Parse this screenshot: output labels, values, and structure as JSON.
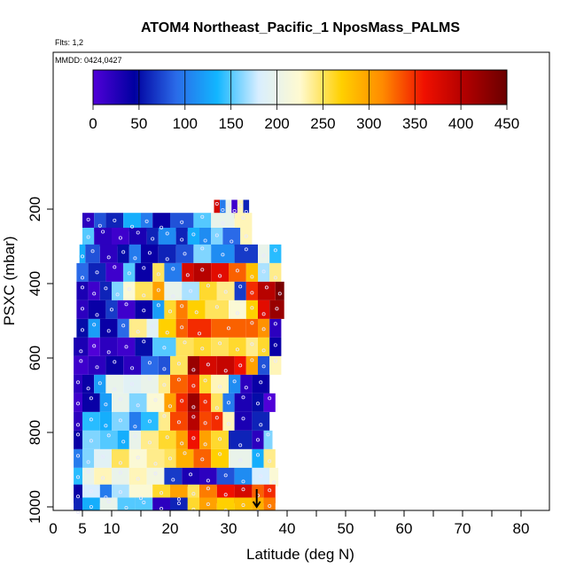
{
  "chart_data": {
    "type": "heatmap",
    "title": "ATOM4 Northeast_Pacific_1 NposMass_PALMS",
    "notes": [
      "Flts: 1,2",
      "MMDD: 0424,0427"
    ],
    "xlabel": "Latitude (deg N)",
    "ylabel": "PSXC (mbar)",
    "xlim": [
      0,
      85
    ],
    "ylim": [
      1000,
      100
    ],
    "x_ticks": [
      0,
      5,
      10,
      20,
      30,
      40,
      50,
      60,
      70,
      80
    ],
    "y_ticks": [
      200,
      400,
      600,
      800,
      1000
    ],
    "colorbar": {
      "range": [
        0,
        450
      ],
      "ticks": [
        0,
        50,
        100,
        150,
        200,
        250,
        300,
        350,
        400,
        450
      ],
      "colors": [
        "#5000d8",
        "#0000a0",
        "#2a6ae8",
        "#12b6ff",
        "#d8eeff",
        "#fffad0",
        "#ffd000",
        "#ff8a00",
        "#f01000",
        "#b00000",
        "#6a0000"
      ]
    },
    "x_grid": [
      5,
      10,
      15,
      20,
      25,
      30,
      35,
      40,
      45,
      50,
      55,
      60,
      65,
      70,
      75,
      80
    ],
    "bands": [
      {
        "p": 200,
        "segments": [
          [
            27.5,
            28.5,
            380
          ],
          [
            28.5,
            29.5,
            100
          ],
          [
            29.5,
            30.5,
            200
          ],
          [
            30.5,
            31.5,
            10
          ],
          [
            31.5,
            32.5,
            230
          ],
          [
            32.5,
            33.5,
            60
          ]
        ]
      },
      {
        "p": 235,
        "segments": [
          [
            5,
            7,
            20
          ],
          [
            7,
            9,
            80
          ],
          [
            9,
            12,
            60
          ],
          [
            12,
            15,
            130
          ],
          [
            15,
            17,
            100
          ],
          [
            17,
            20,
            40
          ],
          [
            20,
            24,
            80
          ],
          [
            24,
            27,
            150
          ],
          [
            27,
            31,
            200
          ],
          [
            31,
            34,
            230
          ]
        ]
      },
      {
        "p": 275,
        "segments": [
          [
            5,
            7,
            150
          ],
          [
            7,
            10,
            20
          ],
          [
            10,
            13,
            10
          ],
          [
            13,
            16,
            30
          ],
          [
            16,
            18,
            60
          ],
          [
            18,
            21,
            110
          ],
          [
            21,
            23,
            60
          ],
          [
            23,
            25,
            130
          ],
          [
            25,
            27,
            110
          ],
          [
            27,
            29,
            160
          ],
          [
            29,
            32,
            90
          ],
          [
            32,
            34,
            230
          ]
        ]
      },
      {
        "p": 320,
        "segments": [
          [
            4.5,
            5.5,
            130
          ],
          [
            5.5,
            8,
            80
          ],
          [
            8,
            11,
            20
          ],
          [
            11,
            13,
            50
          ],
          [
            13,
            15,
            100
          ],
          [
            15,
            18,
            40
          ],
          [
            18,
            21,
            60
          ],
          [
            21,
            24,
            80
          ],
          [
            24,
            27,
            160
          ],
          [
            27,
            31,
            110
          ],
          [
            31,
            35,
            70
          ],
          [
            35,
            37,
            200
          ],
          [
            37,
            39,
            140
          ]
        ]
      },
      {
        "p": 370,
        "segments": [
          [
            4,
            6,
            90
          ],
          [
            6,
            9,
            60
          ],
          [
            9,
            12,
            10
          ],
          [
            12,
            14,
            150
          ],
          [
            14,
            17,
            40
          ],
          [
            17,
            19,
            250
          ],
          [
            19,
            22,
            100
          ],
          [
            22,
            24,
            380
          ],
          [
            24,
            27,
            400
          ],
          [
            27,
            30,
            370
          ],
          [
            30,
            33,
            330
          ],
          [
            33,
            35,
            280
          ],
          [
            35,
            37,
            170
          ],
          [
            37,
            39,
            240
          ]
        ]
      },
      {
        "p": 420,
        "segments": [
          [
            4,
            6,
            30
          ],
          [
            6,
            8,
            10
          ],
          [
            8,
            10,
            60
          ],
          [
            10,
            12,
            160
          ],
          [
            12,
            14,
            220
          ],
          [
            14,
            17,
            250
          ],
          [
            17,
            19,
            300
          ],
          [
            19,
            22,
            200
          ],
          [
            22,
            25,
            170
          ],
          [
            25,
            28,
            260
          ],
          [
            28,
            31,
            240
          ],
          [
            31,
            33,
            70
          ],
          [
            33,
            35,
            350
          ],
          [
            35,
            38,
            400
          ],
          [
            38,
            39.5,
            440
          ]
        ]
      },
      {
        "p": 470,
        "segments": [
          [
            4,
            6,
            20
          ],
          [
            6,
            9,
            40
          ],
          [
            9,
            11,
            70
          ],
          [
            11,
            14,
            10
          ],
          [
            14,
            17,
            40
          ],
          [
            17,
            19,
            120
          ],
          [
            19,
            21,
            260
          ],
          [
            21,
            23,
            320
          ],
          [
            23,
            26,
            270
          ],
          [
            26,
            30,
            250
          ],
          [
            30,
            33,
            220
          ],
          [
            33,
            35,
            270
          ],
          [
            35,
            37,
            370
          ],
          [
            37,
            39.5,
            420
          ]
        ]
      },
      {
        "p": 520,
        "segments": [
          [
            4,
            6,
            50
          ],
          [
            6,
            8,
            120
          ],
          [
            8,
            11,
            40
          ],
          [
            11,
            13,
            90
          ],
          [
            13,
            16,
            240
          ],
          [
            16,
            18,
            190
          ],
          [
            18,
            21,
            270
          ],
          [
            21,
            23,
            330
          ],
          [
            23,
            27,
            350
          ],
          [
            27,
            33,
            330
          ],
          [
            33,
            35,
            330
          ],
          [
            35,
            37,
            310
          ],
          [
            37,
            39,
            20
          ]
        ]
      },
      {
        "p": 570,
        "segments": [
          [
            3.5,
            6,
            30
          ],
          [
            6,
            8,
            0
          ],
          [
            8,
            11,
            20
          ],
          [
            11,
            14,
            10
          ],
          [
            14,
            17,
            50
          ],
          [
            17,
            21,
            150
          ],
          [
            21,
            24,
            250
          ],
          [
            24,
            27,
            260
          ],
          [
            27,
            30,
            250
          ],
          [
            30,
            33,
            260
          ],
          [
            33,
            35,
            240
          ],
          [
            35,
            37,
            260
          ],
          [
            37,
            39,
            40
          ]
        ]
      },
      {
        "p": 620,
        "segments": [
          [
            3.5,
            6,
            10
          ],
          [
            6,
            9,
            20
          ],
          [
            9,
            12,
            40
          ],
          [
            12,
            15,
            20
          ],
          [
            15,
            18,
            90
          ],
          [
            18,
            20,
            80
          ],
          [
            20,
            23,
            250
          ],
          [
            23,
            25,
            420
          ],
          [
            25,
            28,
            380
          ],
          [
            28,
            31,
            390
          ],
          [
            31,
            33,
            360
          ],
          [
            33,
            35,
            300
          ],
          [
            35,
            37,
            80
          ],
          [
            37,
            39,
            230
          ]
        ]
      },
      {
        "p": 670,
        "segments": [
          [
            3.5,
            5,
            20
          ],
          [
            5,
            7,
            40
          ],
          [
            7,
            9,
            120
          ],
          [
            9,
            12,
            200
          ],
          [
            12,
            15,
            190
          ],
          [
            15,
            18,
            200
          ],
          [
            18,
            20,
            240
          ],
          [
            20,
            23,
            330
          ],
          [
            23,
            25,
            350
          ],
          [
            25,
            27,
            260
          ],
          [
            27,
            30,
            230
          ],
          [
            30,
            32,
            110
          ],
          [
            32,
            34,
            20
          ],
          [
            34,
            37,
            40
          ]
        ]
      },
      {
        "p": 720,
        "segments": [
          [
            3.5,
            5,
            10
          ],
          [
            5,
            8,
            40
          ],
          [
            8,
            10,
            120
          ],
          [
            10,
            13,
            200
          ],
          [
            13,
            16,
            160
          ],
          [
            16,
            19,
            220
          ],
          [
            19,
            21,
            300
          ],
          [
            21,
            23,
            350
          ],
          [
            23,
            25,
            420
          ],
          [
            25,
            27,
            350
          ],
          [
            27,
            29,
            250
          ],
          [
            29,
            31,
            100
          ],
          [
            31,
            34,
            30
          ],
          [
            34,
            36,
            50
          ],
          [
            36,
            38,
            0
          ]
        ]
      },
      {
        "p": 770,
        "segments": [
          [
            3.5,
            5,
            20
          ],
          [
            5,
            8,
            140
          ],
          [
            8,
            10,
            130
          ],
          [
            10,
            13,
            160
          ],
          [
            13,
            15,
            100
          ],
          [
            15,
            18,
            140
          ],
          [
            18,
            20,
            240
          ],
          [
            20,
            23,
            340
          ],
          [
            23,
            25,
            400
          ],
          [
            25,
            27,
            340
          ],
          [
            27,
            29,
            350
          ],
          [
            29,
            31,
            230
          ],
          [
            31,
            34,
            30
          ],
          [
            34,
            37,
            60
          ]
        ]
      },
      {
        "p": 820,
        "segments": [
          [
            3.5,
            5,
            40
          ],
          [
            5,
            8,
            160
          ],
          [
            8,
            11,
            150
          ],
          [
            11,
            13,
            130
          ],
          [
            13,
            15,
            200
          ],
          [
            15,
            18,
            240
          ],
          [
            18,
            21,
            260
          ],
          [
            21,
            23,
            300
          ],
          [
            23,
            25,
            360
          ],
          [
            25,
            27,
            300
          ],
          [
            27,
            30,
            260
          ],
          [
            30,
            34,
            60
          ],
          [
            34,
            36,
            20
          ],
          [
            36,
            37.5,
            160
          ]
        ]
      },
      {
        "p": 870,
        "segments": [
          [
            3.5,
            5,
            100
          ],
          [
            5,
            7,
            160
          ],
          [
            7,
            10,
            190
          ],
          [
            10,
            13,
            250
          ],
          [
            13,
            16,
            220
          ],
          [
            16,
            19,
            240
          ],
          [
            19,
            21,
            250
          ],
          [
            21,
            24,
            290
          ],
          [
            24,
            27,
            330
          ],
          [
            27,
            30,
            270
          ],
          [
            30,
            34,
            200
          ],
          [
            34,
            36,
            130
          ],
          [
            36,
            38,
            240
          ]
        ]
      },
      {
        "p": 920,
        "segments": [
          [
            3.5,
            5,
            140
          ],
          [
            5,
            7,
            200
          ],
          [
            7,
            10,
            230
          ],
          [
            10,
            13,
            200
          ],
          [
            13,
            16,
            230
          ],
          [
            16,
            19,
            210
          ],
          [
            19,
            22,
            70
          ],
          [
            22,
            25,
            30
          ],
          [
            25,
            28,
            20
          ],
          [
            28,
            31,
            80
          ],
          [
            31,
            34,
            110
          ],
          [
            34,
            37,
            180
          ],
          [
            37,
            38.5,
            220
          ]
        ]
      },
      {
        "p": 965,
        "segments": [
          [
            3.5,
            5,
            40
          ],
          [
            5,
            8,
            180
          ],
          [
            8,
            10,
            100
          ],
          [
            10,
            13,
            170
          ],
          [
            13,
            17,
            220
          ],
          [
            17,
            20,
            260
          ],
          [
            20,
            23,
            300
          ],
          [
            23,
            25,
            250
          ],
          [
            25,
            28,
            320
          ],
          [
            28,
            31,
            360
          ],
          [
            31,
            34,
            380
          ],
          [
            34,
            36,
            330
          ],
          [
            36,
            38,
            350
          ]
        ]
      },
      {
        "p": 1000,
        "segments": [
          [
            3.5,
            5,
            60
          ],
          [
            5,
            8,
            130
          ],
          [
            8,
            11,
            200
          ],
          [
            11,
            14,
            150
          ],
          [
            14,
            17,
            150
          ],
          [
            17,
            20,
            20
          ],
          [
            20,
            23,
            60
          ],
          [
            23,
            25,
            260
          ],
          [
            25,
            28,
            300
          ],
          [
            28,
            31,
            270
          ],
          [
            31,
            34,
            280
          ],
          [
            34,
            36,
            290
          ],
          [
            36,
            38,
            320
          ]
        ]
      }
    ],
    "arrow": {
      "x": 34.8,
      "p": 1000
    }
  }
}
